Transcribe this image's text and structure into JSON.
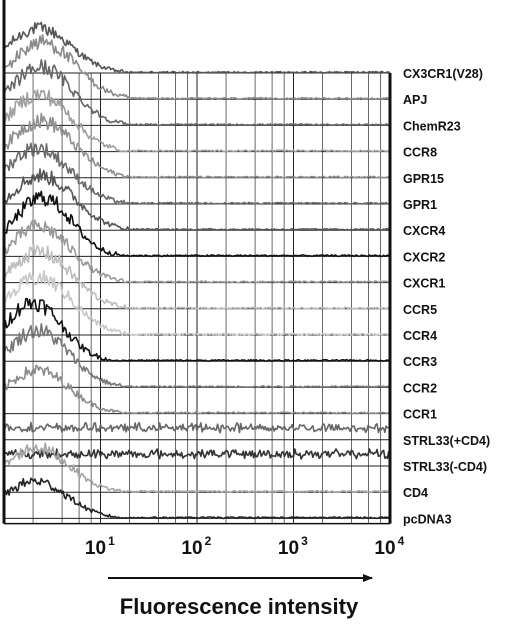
{
  "chart_data": {
    "type": "area",
    "title": "",
    "xlabel": "Fluorescence intensity",
    "ylabel": "",
    "x_scale": "log",
    "xlim": [
      1,
      10000
    ],
    "grid": true,
    "x_ticks": [
      {
        "base": "10",
        "exp": "1",
        "value": 10
      },
      {
        "base": "10",
        "exp": "2",
        "value": 100
      },
      {
        "base": "10",
        "exp": "3",
        "value": 1000
      },
      {
        "base": "10",
        "exp": "4",
        "value": 10000
      }
    ],
    "series": [
      {
        "name": "CX3CR1(V28)",
        "peak": 2.3,
        "width": 0.33,
        "amp": 0.72,
        "color": "#555555"
      },
      {
        "name": "APJ",
        "peak": 2.5,
        "width": 0.34,
        "amp": 0.92,
        "color": "#8a8a8a"
      },
      {
        "name": "ChemR23",
        "peak": 2.4,
        "width": 0.33,
        "amp": 0.94,
        "color": "#666666"
      },
      {
        "name": "CCR8",
        "peak": 2.3,
        "width": 0.33,
        "amp": 0.92,
        "color": "#a0a0a0"
      },
      {
        "name": "GPR15",
        "peak": 2.4,
        "width": 0.34,
        "amp": 0.92,
        "color": "#909090"
      },
      {
        "name": "GPR1",
        "peak": 2.2,
        "width": 0.34,
        "amp": 0.9,
        "color": "#6a6a6a"
      },
      {
        "name": "CXCR4",
        "peak": 2.4,
        "width": 0.34,
        "amp": 0.88,
        "color": "#555555"
      },
      {
        "name": "CXCR2",
        "peak": 2.5,
        "width": 0.3,
        "amp": 0.95,
        "color": "#111111"
      },
      {
        "name": "CXCR1",
        "peak": 2.3,
        "width": 0.33,
        "amp": 0.9,
        "color": "#999999"
      },
      {
        "name": "CCR5",
        "peak": 2.3,
        "width": 0.34,
        "amp": 0.92,
        "color": "#bdbdbd"
      },
      {
        "name": "CCR4",
        "peak": 2.3,
        "width": 0.34,
        "amp": 0.92,
        "color": "#c8c8c8"
      },
      {
        "name": "CCR3",
        "peak": 2.0,
        "width": 0.3,
        "amp": 0.95,
        "color": "#111111"
      },
      {
        "name": "CCR2",
        "peak": 2.2,
        "width": 0.33,
        "amp": 0.92,
        "color": "#777777"
      },
      {
        "name": "CCR1",
        "peak": 2.2,
        "width": 0.33,
        "amp": 0.7,
        "color": "#8c8c8c"
      },
      {
        "name": "STRL33(+CD4)",
        "peak": 250,
        "width": 2.2,
        "amp": 0.55,
        "color": "#666666",
        "ceiling": 0.35
      },
      {
        "name": "STRL33(-CD4)",
        "peak": 1200,
        "width": 2.3,
        "amp": 0.55,
        "color": "#333333",
        "ceiling": 0.35
      },
      {
        "name": "CD4",
        "peak": 2.2,
        "width": 0.33,
        "amp": 0.72,
        "color": "#a5a5a5"
      },
      {
        "name": "pcDNA3",
        "peak": 2.1,
        "width": 0.33,
        "amp": 0.6,
        "color": "#222222"
      }
    ]
  }
}
